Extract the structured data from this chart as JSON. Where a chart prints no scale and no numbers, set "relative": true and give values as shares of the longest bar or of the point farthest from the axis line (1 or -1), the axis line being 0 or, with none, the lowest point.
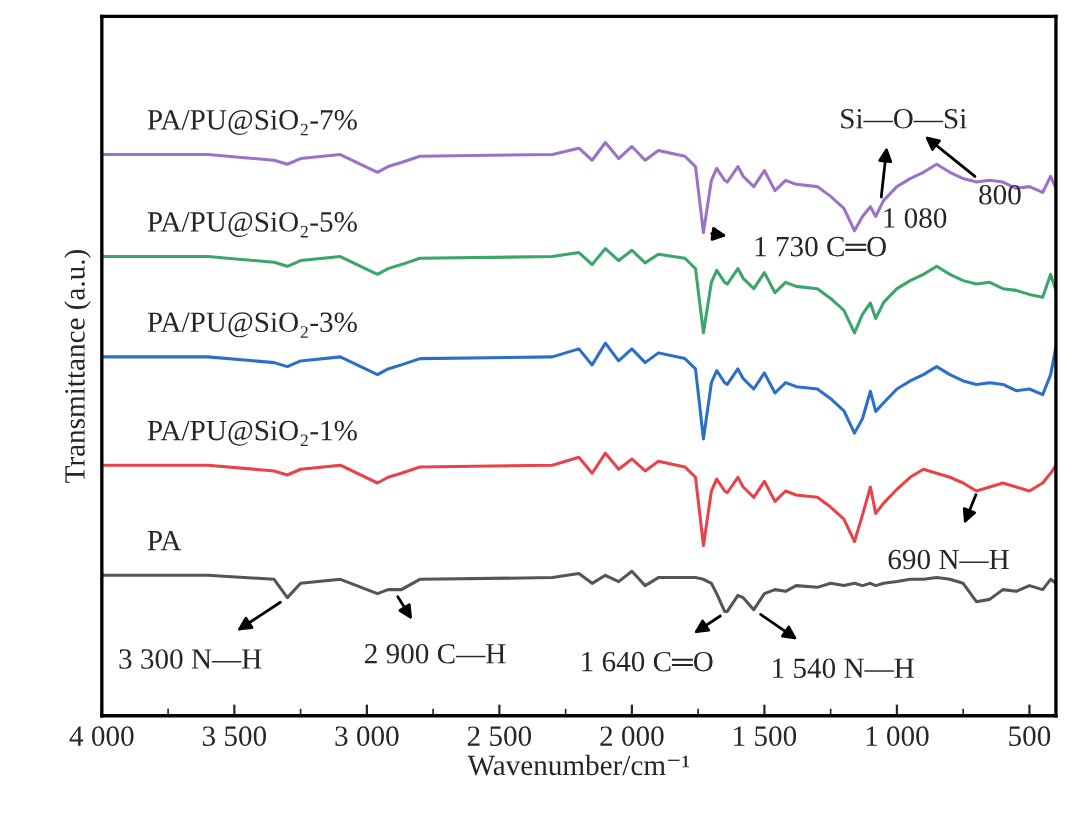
{
  "chart_data": {
    "type": "line",
    "relative": true,
    "xlabel": "Wavenumber/cm⁻¹",
    "ylabel": "Transmittance (a.u.)",
    "xlim": [
      4000,
      400
    ],
    "xticks": [
      {
        "value": 4000,
        "label": "4 000"
      },
      {
        "value": 3750,
        "label": null
      },
      {
        "value": 3500,
        "label": "3 500"
      },
      {
        "value": 3250,
        "label": null
      },
      {
        "value": 3000,
        "label": "3 000"
      },
      {
        "value": 2750,
        "label": null
      },
      {
        "value": 2500,
        "label": "2 500"
      },
      {
        "value": 2250,
        "label": null
      },
      {
        "value": 2000,
        "label": "2 000"
      },
      {
        "value": 1750,
        "label": null
      },
      {
        "value": 1500,
        "label": "1 500"
      },
      {
        "value": 1250,
        "label": null
      },
      {
        "value": 1000,
        "label": "1 000"
      },
      {
        "value": 750,
        "label": null
      },
      {
        "value": 500,
        "label": "500"
      }
    ],
    "tick_labels": "x",
    "grid": false,
    "legend": false,
    "marker": "none",
    "line_style": "solid",
    "x": [
      4000,
      3600,
      3350,
      3300,
      3250,
      3100,
      2960,
      2920,
      2870,
      2800,
      2300,
      2200,
      2150,
      2100,
      2050,
      2000,
      1950,
      1900,
      1800,
      1760,
      1730,
      1700,
      1680,
      1650,
      1640,
      1600,
      1580,
      1540,
      1500,
      1460,
      1420,
      1380,
      1300,
      1250,
      1200,
      1160,
      1130,
      1100,
      1080,
      1050,
      1000,
      950,
      900,
      850,
      800,
      750,
      700,
      650,
      600,
      550,
      500,
      450,
      420,
      400
    ],
    "series": [
      {
        "name": "PA/PU@SiO₂-7%",
        "color": "#9b72c8",
        "values": [
          0.979,
          0.979,
          0.969,
          0.962,
          0.972,
          0.979,
          0.948,
          0.958,
          0.965,
          0.976,
          0.979,
          0.99,
          0.969,
          1.0,
          0.972,
          0.993,
          0.969,
          0.986,
          0.976,
          0.958,
          0.843,
          0.934,
          0.955,
          0.934,
          0.931,
          0.958,
          0.941,
          0.923,
          0.951,
          0.916,
          0.934,
          0.927,
          0.923,
          0.906,
          0.885,
          0.846,
          0.871,
          0.888,
          0.871,
          0.899,
          0.923,
          0.937,
          0.948,
          0.962,
          0.948,
          0.937,
          0.931,
          0.934,
          0.931,
          0.92,
          0.923,
          0.913,
          0.941,
          0.92
        ]
      },
      {
        "name": "PA/PU@SiO₂-5%",
        "color": "#3ba56c",
        "values": [
          0.801,
          0.801,
          0.791,
          0.784,
          0.794,
          0.801,
          0.77,
          0.78,
          0.787,
          0.798,
          0.801,
          0.808,
          0.787,
          0.815,
          0.794,
          0.812,
          0.79,
          0.805,
          0.798,
          0.78,
          0.668,
          0.756,
          0.777,
          0.756,
          0.753,
          0.78,
          0.763,
          0.745,
          0.773,
          0.738,
          0.756,
          0.749,
          0.745,
          0.728,
          0.707,
          0.668,
          0.7,
          0.72,
          0.693,
          0.721,
          0.745,
          0.759,
          0.77,
          0.784,
          0.77,
          0.759,
          0.753,
          0.756,
          0.745,
          0.742,
          0.735,
          0.73,
          0.77,
          0.742
        ]
      },
      {
        "name": "PA/PU@SiO₂-3%",
        "color": "#2b6fc8",
        "values": [
          0.626,
          0.626,
          0.616,
          0.609,
          0.619,
          0.626,
          0.595,
          0.605,
          0.612,
          0.623,
          0.626,
          0.64,
          0.612,
          0.65,
          0.619,
          0.64,
          0.616,
          0.633,
          0.623,
          0.605,
          0.483,
          0.581,
          0.602,
          0.581,
          0.578,
          0.605,
          0.588,
          0.57,
          0.598,
          0.563,
          0.581,
          0.574,
          0.57,
          0.553,
          0.532,
          0.493,
          0.518,
          0.566,
          0.531,
          0.546,
          0.57,
          0.584,
          0.595,
          0.609,
          0.595,
          0.584,
          0.578,
          0.581,
          0.578,
          0.567,
          0.57,
          0.56,
          0.595,
          0.643
        ]
      },
      {
        "name": "PA/PU@SiO₂-1%",
        "color": "#e8434b",
        "values": [
          0.437,
          0.437,
          0.427,
          0.42,
          0.43,
          0.437,
          0.406,
          0.416,
          0.423,
          0.434,
          0.437,
          0.451,
          0.423,
          0.458,
          0.43,
          0.448,
          0.427,
          0.444,
          0.434,
          0.416,
          0.297,
          0.392,
          0.413,
          0.392,
          0.389,
          0.416,
          0.399,
          0.381,
          0.409,
          0.374,
          0.392,
          0.385,
          0.381,
          0.364,
          0.343,
          0.304,
          0.35,
          0.399,
          0.353,
          0.371,
          0.395,
          0.416,
          0.43,
          0.423,
          0.416,
          0.406,
          0.392,
          0.399,
          0.406,
          0.399,
          0.392,
          0.406,
          0.423,
          0.437
        ]
      },
      {
        "name": "PA",
        "color": "#555555",
        "values": [
          0.245,
          0.245,
          0.238,
          0.206,
          0.231,
          0.238,
          0.213,
          0.22,
          0.22,
          0.238,
          0.241,
          0.248,
          0.231,
          0.245,
          0.234,
          0.252,
          0.227,
          0.241,
          0.241,
          0.241,
          0.238,
          0.231,
          0.213,
          0.182,
          0.182,
          0.21,
          0.206,
          0.185,
          0.213,
          0.22,
          0.217,
          0.227,
          0.224,
          0.231,
          0.227,
          0.231,
          0.227,
          0.231,
          0.227,
          0.231,
          0.234,
          0.238,
          0.238,
          0.241,
          0.238,
          0.231,
          0.199,
          0.203,
          0.22,
          0.217,
          0.227,
          0.22,
          0.238,
          0.231
        ]
      }
    ],
    "annotations": [
      {
        "text": "3 300 N—H",
        "x": 3300,
        "y": 0.206
      },
      {
        "text": "2 900 C—H",
        "x": 2900,
        "y": 0.22
      },
      {
        "text": "1 640 C═O",
        "x": 1640,
        "y": 0.182
      },
      {
        "text": "1 540 N—H",
        "x": 1540,
        "y": 0.185
      },
      {
        "text": "690 N—H",
        "x": 690,
        "y": 0.399
      },
      {
        "text": "1 730 C═O",
        "x": 1730,
        "y": 0.843
      },
      {
        "text": "1 080",
        "x": 1080,
        "y": 0.871
      },
      {
        "text": "800",
        "x": 800,
        "y": 0.948
      },
      "Si—O—Si"
    ]
  }
}
